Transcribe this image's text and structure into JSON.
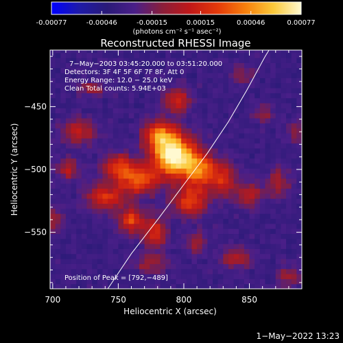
{
  "colorbar": {
    "ticks": [
      {
        "value": -0.00077,
        "label": "-0.00077"
      },
      {
        "value": -0.00046,
        "label": "-0.00046"
      },
      {
        "value": -0.00015,
        "label": "-0.00015"
      },
      {
        "value": 0.00015,
        "label": "0.00015"
      },
      {
        "value": 0.00046,
        "label": "0.00046"
      },
      {
        "value": 0.00077,
        "label": "0.00077"
      }
    ],
    "range": [
      -0.00077,
      0.00077
    ],
    "unit_label": "(photons cm⁻² s⁻¹ asec⁻²)",
    "colors": [
      "#0000ff",
      "#1e1aa8",
      "#2a1a78",
      "#4a1f88",
      "#8a1e3a",
      "#c01818",
      "#e43a0a",
      "#f7800c",
      "#fbc93a",
      "#fff9d0"
    ]
  },
  "chart_data": {
    "type": "heatmap",
    "title": "Reconstructed RHESSI Image",
    "xlabel": "Heliocentric X (arcsec)",
    "ylabel": "Heliocentric Y (arcsec)",
    "xlim": [
      698,
      890
    ],
    "ylim": [
      -595,
      -405
    ],
    "xticks": [
      {
        "value": 700,
        "label": "700"
      },
      {
        "value": 750,
        "label": "750"
      },
      {
        "value": 800,
        "label": "800"
      },
      {
        "value": 850,
        "label": "850"
      }
    ],
    "yticks": [
      {
        "value": -450,
        "label": "−450"
      },
      {
        "value": -500,
        "label": "−500"
      },
      {
        "value": -550,
        "label": "−550"
      }
    ],
    "annotations": [
      "7−May−2003 03:45:20.000 to 03:51:20.000",
      "Detectors: 3F 4F 5F 6F 7F 8F, Att 0",
      "Energy Range: 12.0 − 25.0 keV",
      "Clean    Total counts: 5.94E+03"
    ],
    "peak_label": "Position of Peak = [792,−489]",
    "peak": {
      "x": 792,
      "y": -489
    },
    "sources": [
      {
        "x": 792,
        "y": -489,
        "sx": 11,
        "sy": 11,
        "amp": 1.0
      },
      {
        "x": 782,
        "y": -472,
        "sx": 9,
        "sy": 8,
        "amp": 0.55
      },
      {
        "x": 812,
        "y": -500,
        "sx": 9,
        "sy": 10,
        "amp": 0.6
      },
      {
        "x": 765,
        "y": -508,
        "sx": 11,
        "sy": 8,
        "amp": 0.55
      },
      {
        "x": 750,
        "y": -497,
        "sx": 8,
        "sy": 7,
        "amp": 0.45
      },
      {
        "x": 740,
        "y": -522,
        "sx": 10,
        "sy": 7,
        "amp": 0.45
      },
      {
        "x": 760,
        "y": -540,
        "sx": 7,
        "sy": 7,
        "amp": 0.5
      },
      {
        "x": 778,
        "y": -550,
        "sx": 6,
        "sy": 9,
        "amp": 0.45
      },
      {
        "x": 805,
        "y": -525,
        "sx": 9,
        "sy": 8,
        "amp": 0.5
      },
      {
        "x": 830,
        "y": -508,
        "sx": 7,
        "sy": 9,
        "amp": 0.4
      },
      {
        "x": 720,
        "y": -470,
        "sx": 9,
        "sy": 7,
        "amp": 0.35
      },
      {
        "x": 712,
        "y": -500,
        "sx": 6,
        "sy": 6,
        "amp": 0.3
      },
      {
        "x": 795,
        "y": -445,
        "sx": 7,
        "sy": 7,
        "amp": 0.4
      },
      {
        "x": 850,
        "y": -520,
        "sx": 7,
        "sy": 7,
        "amp": 0.32
      },
      {
        "x": 872,
        "y": -510,
        "sx": 6,
        "sy": 8,
        "amp": 0.3
      },
      {
        "x": 860,
        "y": -455,
        "sx": 6,
        "sy": 5,
        "amp": 0.22
      },
      {
        "x": 730,
        "y": -435,
        "sx": 7,
        "sy": 5,
        "amp": 0.25
      },
      {
        "x": 775,
        "y": -575,
        "sx": 9,
        "sy": 5,
        "amp": 0.25
      },
      {
        "x": 840,
        "y": -570,
        "sx": 8,
        "sy": 6,
        "amp": 0.3
      },
      {
        "x": 810,
        "y": -558,
        "sx": 5,
        "sy": 6,
        "amp": 0.28
      },
      {
        "x": 700,
        "y": -540,
        "sx": 5,
        "sy": 7,
        "amp": 0.28
      },
      {
        "x": 880,
        "y": -585,
        "sx": 6,
        "sy": 6,
        "amp": 0.25
      },
      {
        "x": 845,
        "y": -425,
        "sx": 6,
        "sy": 5,
        "amp": 0.2
      },
      {
        "x": 885,
        "y": -470,
        "sx": 5,
        "sy": 6,
        "amp": 0.22
      }
    ],
    "limb_curve": [
      {
        "x": 742,
        "y": -595
      },
      {
        "x": 760,
        "y": -567
      },
      {
        "x": 780,
        "y": -540
      },
      {
        "x": 800,
        "y": -512
      },
      {
        "x": 818,
        "y": -487
      },
      {
        "x": 834,
        "y": -462
      },
      {
        "x": 848,
        "y": -437
      },
      {
        "x": 862,
        "y": -410
      },
      {
        "x": 865,
        "y": -405
      }
    ]
  },
  "footer": {
    "timestamp": "1−May−2022 13:23"
  }
}
